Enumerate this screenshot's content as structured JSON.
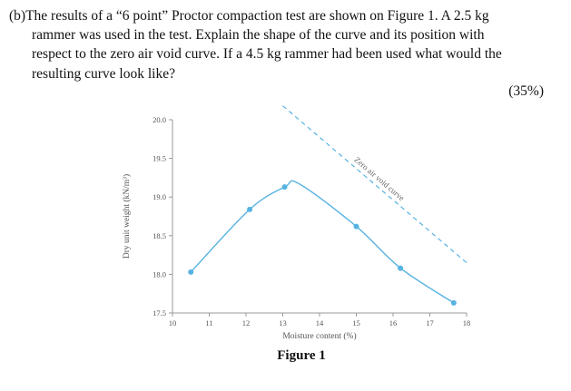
{
  "question": {
    "lines": [
      "(b)The results of a “6 point” Proctor compaction test are shown on Figure 1. A 2.5 kg",
      "rammer was used in the test. Explain the shape of the curve and its position with",
      "respect to the zero air void curve. If a 4.5 kg rammer had been used what would the",
      "resulting curve look like?"
    ],
    "marks": "(35%)"
  },
  "figure": {
    "caption": "Figure 1"
  },
  "chart_data": {
    "type": "line",
    "markers": true,
    "title": "",
    "xlabel": "Moisture content (%)",
    "ylabel": "Dry unit weight (kN/m³)",
    "xlim": [
      10,
      18
    ],
    "ylim": [
      17.5,
      20.0
    ],
    "xticks": [
      10,
      11,
      12,
      13,
      14,
      15,
      16,
      17,
      18
    ],
    "yticks": [
      17.5,
      18.0,
      18.5,
      19.0,
      19.5,
      20.0
    ],
    "grid": false,
    "legend": false,
    "axis_color": "#999999",
    "tick_color": "#555555",
    "series": [
      {
        "name": "Compaction curve",
        "style": "solid",
        "color": "#56b3e1",
        "points": [
          [
            10.5,
            18.03
          ],
          [
            12.1,
            18.84
          ],
          [
            13.05,
            19.13
          ],
          [
            15.0,
            18.62
          ],
          [
            16.2,
            18.08
          ],
          [
            17.65,
            17.63
          ]
        ],
        "curve": [
          [
            10.5,
            18.03
          ],
          [
            12.1,
            18.84
          ],
          [
            13.05,
            19.13
          ],
          [
            13.45,
            19.17
          ],
          [
            15.0,
            18.62
          ],
          [
            16.2,
            18.08
          ],
          [
            17.65,
            17.63
          ]
        ]
      },
      {
        "name": "Zero air void curve",
        "style": "dashed",
        "color": "#56b3e1",
        "label_color": "#666666",
        "points": [
          [
            13.0,
            20.18
          ],
          [
            18.0,
            18.15
          ]
        ]
      }
    ]
  }
}
